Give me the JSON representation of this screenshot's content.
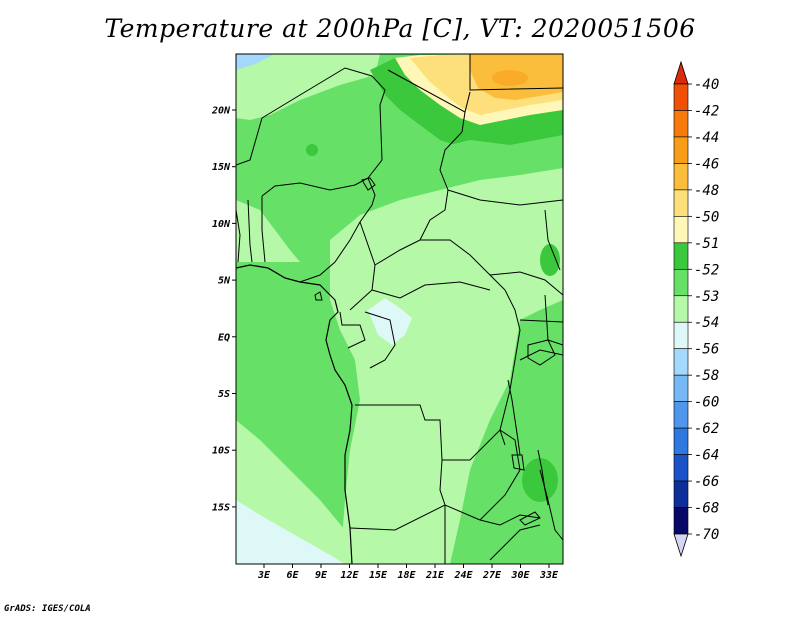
{
  "title": "Temperature at 200hPa [C], VT: 2020051506",
  "credit": "GrADS: IGES/COLA",
  "map": {
    "lon_ticks": [
      "3E",
      "6E",
      "9E",
      "12E",
      "15E",
      "18E",
      "21E",
      "24E",
      "27E",
      "30E",
      "33E"
    ],
    "lat_ticks": [
      "20N",
      "15N",
      "10N",
      "5N",
      "EQ",
      "5S",
      "10S",
      "15S"
    ]
  },
  "colorbar": {
    "levels": [
      "-40",
      "-42",
      "-44",
      "-46",
      "-48",
      "-50",
      "-51",
      "-52",
      "-53",
      "-54",
      "-56",
      "-58",
      "-60",
      "-62",
      "-64",
      "-66",
      "-68",
      "-70"
    ],
    "colors": [
      "#dc2a0c",
      "#f04f08",
      "#f77a0c",
      "#f99d18",
      "#fbbe3c",
      "#fde07b",
      "#fef7b8",
      "#3cc83c",
      "#66e066",
      "#b4f8a8",
      "#def8f8",
      "#a4d8fc",
      "#78b8f4",
      "#5096ea",
      "#2e78e0",
      "#1c52c8",
      "#0e2e9a",
      "#080866",
      "#d6d6f4"
    ]
  },
  "colors": {
    "green_mid": "#66e066",
    "green_light": "#b4f8a8",
    "green_dark": "#3cc83c",
    "yellow_pale": "#fef7b8",
    "yellow": "#fde07b",
    "orange_light": "#fbbe3c",
    "cyan_pale": "#def8f8",
    "blue_light": "#a4d8fc"
  }
}
